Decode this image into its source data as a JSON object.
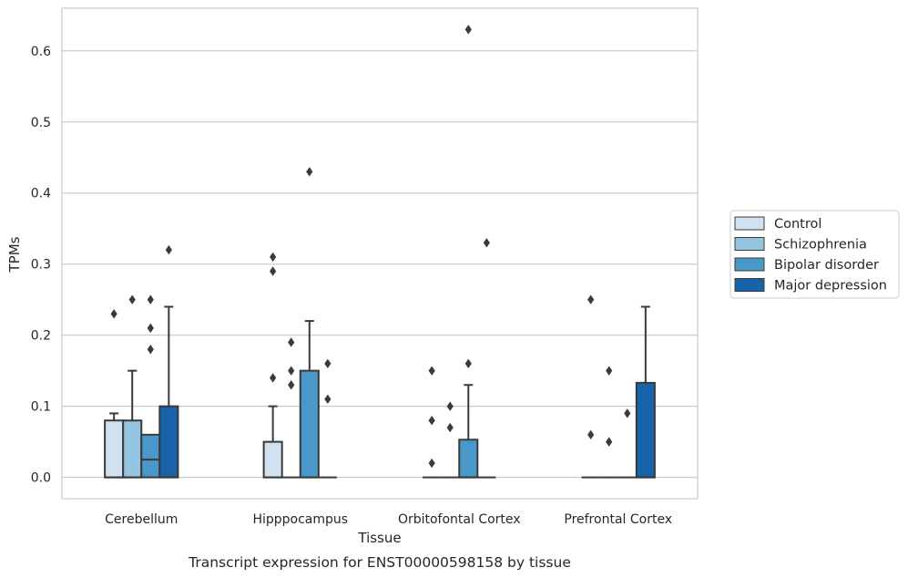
{
  "caption": "Transcript expression for ENST00000598158 by tissue",
  "chart_data": {
    "type": "box",
    "xlabel": "Tissue",
    "ylabel": "TPMs",
    "ylim": [
      -0.03,
      0.66
    ],
    "yticks": [
      0.0,
      0.1,
      0.2,
      0.3,
      0.4,
      0.5,
      0.6
    ],
    "ytick_labels": [
      "0.0",
      "0.1",
      "0.2",
      "0.3",
      "0.4",
      "0.5",
      "0.6"
    ],
    "grid": "horizontal",
    "legend_position": "right",
    "categories": [
      "Cerebellum",
      "Hipppocampus",
      "Orbitofontal Cortex",
      "Prefrontal Cortex"
    ],
    "series": [
      {
        "name": "Control",
        "color": "#d0e1f2",
        "boxes": [
          {
            "q1": 0.0,
            "median": 0.0,
            "q3": 0.08,
            "whisker_low": 0.0,
            "whisker_high": 0.09,
            "outliers": [
              0.23
            ]
          },
          {
            "q1": 0.0,
            "median": 0.0,
            "q3": 0.05,
            "whisker_low": 0.0,
            "whisker_high": 0.1,
            "outliers": [
              0.14,
              0.29,
              0.31
            ]
          },
          {
            "q1": 0.0,
            "median": 0.0,
            "q3": 0.0,
            "whisker_low": 0.0,
            "whisker_high": 0.0,
            "outliers": [
              0.02,
              0.08,
              0.15
            ]
          },
          {
            "q1": 0.0,
            "median": 0.0,
            "q3": 0.0,
            "whisker_low": 0.0,
            "whisker_high": 0.0,
            "outliers": [
              0.06,
              0.25
            ]
          }
        ]
      },
      {
        "name": "Schizophrenia",
        "color": "#94c4df",
        "boxes": [
          {
            "q1": 0.0,
            "median": 0.0,
            "q3": 0.08,
            "whisker_low": 0.0,
            "whisker_high": 0.15,
            "outliers": [
              0.25
            ]
          },
          {
            "q1": 0.0,
            "median": 0.0,
            "q3": 0.0,
            "whisker_low": 0.0,
            "whisker_high": 0.0,
            "outliers": [
              0.13,
              0.15,
              0.19
            ]
          },
          {
            "q1": 0.0,
            "median": 0.0,
            "q3": 0.0,
            "whisker_low": 0.0,
            "whisker_high": 0.0,
            "outliers": [
              0.07,
              0.1
            ]
          },
          {
            "q1": 0.0,
            "median": 0.0,
            "q3": 0.0,
            "whisker_low": 0.0,
            "whisker_high": 0.0,
            "outliers": [
              0.05,
              0.15
            ]
          }
        ]
      },
      {
        "name": "Bipolar disorder",
        "color": "#4a98c9",
        "boxes": [
          {
            "q1": 0.0,
            "median": 0.025,
            "q3": 0.06,
            "whisker_low": 0.0,
            "whisker_high": 0.06,
            "outliers": [
              0.18,
              0.21,
              0.25
            ]
          },
          {
            "q1": 0.0,
            "median": 0.0,
            "q3": 0.15,
            "whisker_low": 0.0,
            "whisker_high": 0.22,
            "outliers": [
              0.43
            ]
          },
          {
            "q1": 0.0,
            "median": 0.0,
            "q3": 0.053,
            "whisker_low": 0.0,
            "whisker_high": 0.13,
            "outliers": [
              0.16,
              0.63
            ]
          },
          {
            "q1": 0.0,
            "median": 0.0,
            "q3": 0.0,
            "whisker_low": 0.0,
            "whisker_high": 0.0,
            "outliers": [
              0.09
            ]
          }
        ]
      },
      {
        "name": "Major depression",
        "color": "#1764ab",
        "boxes": [
          {
            "q1": 0.0,
            "median": 0.0,
            "q3": 0.1,
            "whisker_low": 0.0,
            "whisker_high": 0.24,
            "outliers": [
              0.32
            ]
          },
          {
            "q1": 0.0,
            "median": 0.0,
            "q3": 0.0,
            "whisker_low": 0.0,
            "whisker_high": 0.0,
            "outliers": [
              0.11,
              0.16
            ]
          },
          {
            "q1": 0.0,
            "median": 0.0,
            "q3": 0.0,
            "whisker_low": 0.0,
            "whisker_high": 0.0,
            "outliers": [
              0.33
            ]
          },
          {
            "q1": 0.0,
            "median": 0.0,
            "q3": 0.133,
            "whisker_low": 0.0,
            "whisker_high": 0.24,
            "outliers": []
          }
        ]
      }
    ]
  }
}
